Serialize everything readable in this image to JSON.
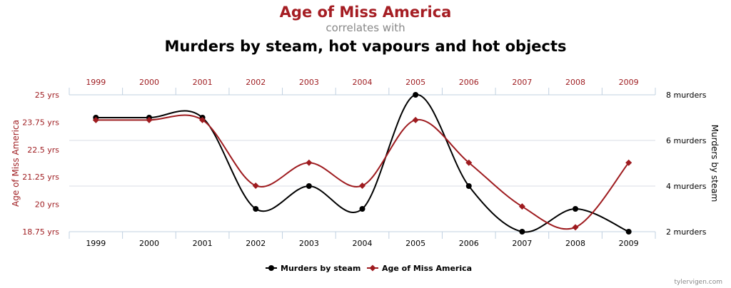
{
  "title": "Age of Miss America",
  "subtitle": "correlates with",
  "second_title": "Murders by steam, hot vapours and hot objects",
  "credit": "tylervigen.com",
  "colors": {
    "red": "#9e1b1f",
    "black": "#000000",
    "title_red": "#a51d23"
  },
  "chart_data": {
    "type": "line",
    "categories": [
      "1999",
      "2000",
      "2001",
      "2002",
      "2003",
      "2004",
      "2005",
      "2006",
      "2007",
      "2008",
      "2009"
    ],
    "series": [
      {
        "name": "Murders by steam",
        "axis": "right",
        "color": "#000000",
        "marker": "circle",
        "values": [
          7,
          7,
          7,
          3,
          4,
          3,
          8,
          4,
          2,
          3,
          2
        ]
      },
      {
        "name": "Age of Miss America",
        "axis": "left",
        "color": "#9e1b1f",
        "marker": "diamond",
        "values": [
          23.85,
          23.85,
          23.85,
          20.85,
          21.9,
          20.85,
          23.85,
          21.9,
          19.9,
          18.95,
          21.9
        ]
      }
    ],
    "left_axis": {
      "label": "Age of Miss America",
      "ticks": [
        "25 yrs",
        "23.75 yrs",
        "22.5 yrs",
        "21.25 yrs",
        "20 yrs",
        "18.75 yrs"
      ],
      "tick_values": [
        25,
        23.75,
        22.5,
        21.25,
        20,
        18.75
      ],
      "ylim": [
        18.75,
        25
      ]
    },
    "right_axis": {
      "label": "Murders by steam",
      "ticks": [
        "8 murders",
        "6 murders",
        "4 murders",
        "2 murders"
      ],
      "tick_values": [
        8,
        6,
        4,
        2
      ],
      "ylim": [
        2,
        8
      ]
    },
    "grid": true,
    "legend": "bottom-center"
  }
}
